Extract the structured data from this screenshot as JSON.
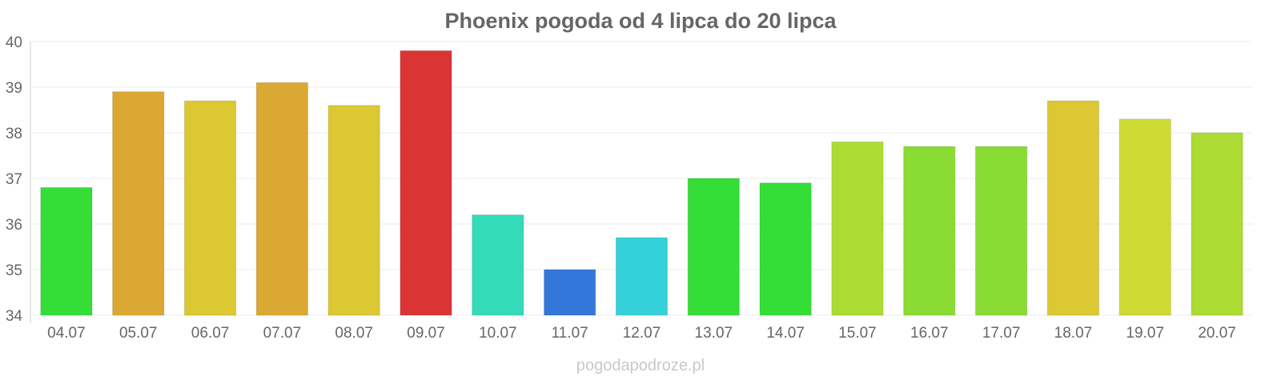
{
  "watermark": "pogodapodroze.pl",
  "chart_data": {
    "type": "bar",
    "title": "Phoenix pogoda od 4 lipca do 20 lipca",
    "xlabel": "",
    "ylabel": "",
    "ylim": [
      34,
      40
    ],
    "y_ticks": [
      "34",
      "35",
      "36",
      "37",
      "38",
      "39",
      "40"
    ],
    "grid": true,
    "categories": [
      "04.07",
      "05.07",
      "06.07",
      "07.07",
      "08.07",
      "09.07",
      "10.07",
      "11.07",
      "12.07",
      "13.07",
      "14.07",
      "15.07",
      "16.07",
      "17.07",
      "18.07",
      "19.07",
      "20.07"
    ],
    "values": [
      36.8,
      38.9,
      38.7,
      39.1,
      38.6,
      39.8,
      36.2,
      35.0,
      35.7,
      37.0,
      36.9,
      37.8,
      37.7,
      37.7,
      38.7,
      38.3,
      38.0
    ],
    "colors": [
      "#34de36",
      "#dba834",
      "#dbc832",
      "#dba834",
      "#dbc832",
      "#db3434",
      "#34dbb8",
      "#3477db",
      "#34d1db",
      "#34de36",
      "#34de36",
      "#acdc34",
      "#8adc34",
      "#8adc34",
      "#dbc832",
      "#cfdb34",
      "#acdc34"
    ]
  }
}
